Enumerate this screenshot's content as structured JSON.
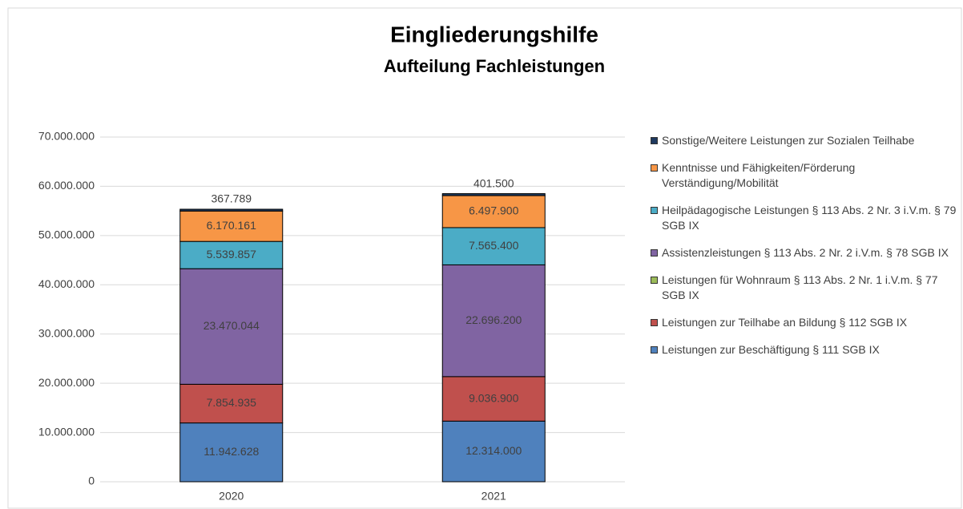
{
  "chart_data": {
    "type": "stacked_bar",
    "title": "Eingliederungshilfe",
    "subtitle": "Aufteilung Fachleistungen",
    "categories": [
      "2020",
      "2021"
    ],
    "series": [
      {
        "name": "Leistungen zur Beschäftigung § 111 SGB IX",
        "color": "#4f81bd",
        "values": [
          11942628,
          12314000
        ],
        "value_labels": [
          "11.942.628",
          "12.314.000"
        ]
      },
      {
        "name": "Leistungen zur Teilhabe an Bildung § 112 SGB IX",
        "color": "#c0504d",
        "values": [
          7854935,
          9036900
        ],
        "value_labels": [
          "7.854.935",
          "9.036.900"
        ]
      },
      {
        "name": "Leistungen für Wohnraum § 113 Abs. 2 Nr. 1 i.V.m. § 77 SGB IX",
        "color": "#9bbb59",
        "values": [
          0,
          0
        ]
      },
      {
        "name": "Assistenzleistungen § 113 Abs. 2 Nr. 2 i.V.m. § 78 SGB IX",
        "color": "#8064a2",
        "values": [
          23470044,
          22696200
        ],
        "value_labels": [
          "23.470.044",
          "22.696.200"
        ]
      },
      {
        "name": "Heilpädagogische Leistungen § 113 Abs. 2 Nr. 3 i.V.m. § 79 SGB IX",
        "color": "#4bacc6",
        "values": [
          5539857,
          7565400
        ],
        "value_labels": [
          "5.539.857",
          "7.565.400"
        ]
      },
      {
        "name": "Kenntnisse und Fähigkeiten/Förderung Verständigung/Mobilität",
        "color": "#f79646",
        "values": [
          6170161,
          6497900
        ],
        "value_labels": [
          "6.170.161",
          "6.497.900"
        ]
      },
      {
        "name": "Sonstige/Weitere Leistungen zur Sozialen Teilhabe",
        "color": "#1f3a5f",
        "values": [
          367789,
          401500
        ],
        "value_labels": [
          "367.789",
          "401.500"
        ]
      }
    ],
    "ylim": [
      0,
      70000000
    ],
    "yticks": [
      0,
      {
        "value": 10000000,
        "label": "10.000.000"
      },
      {
        "value": 20000000,
        "label": "20.000.000"
      },
      {
        "value": 30000000,
        "label": "30.000.000"
      },
      {
        "value": 40000000,
        "label": "40.000.000"
      },
      {
        "value": 50000000,
        "label": "50.000.000"
      },
      {
        "value": 60000000,
        "label": "60.000.000"
      },
      {
        "value": 70000000,
        "label": "70.000.000"
      }
    ],
    "grid": true,
    "legend": "right"
  }
}
